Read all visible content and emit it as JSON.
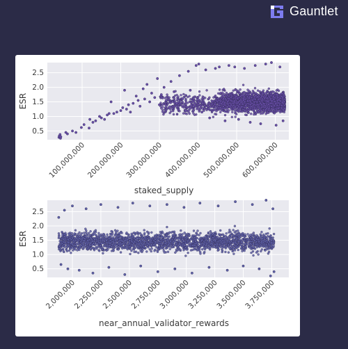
{
  "brand": {
    "name": "Gauntlet",
    "logo_icon": "gauntlet-logo-icon",
    "text_color": "#ffffff"
  },
  "colors": {
    "page_background": "#2b2b47",
    "plot_background": "#e9e9ef",
    "grid": "#ffffff",
    "point_fill_top": "#6a4fa8",
    "point_fill_bottom": "#5f62a8",
    "point_edge": "#2f2a55"
  },
  "chart_data": [
    {
      "type": "scatter",
      "title": "",
      "xlabel": "staked_supply",
      "ylabel": "ESR",
      "xlim": [
        10000000,
        635000000
      ],
      "ylim": [
        0.2,
        2.85
      ],
      "x_ticks": [
        100000000,
        200000000,
        300000000,
        400000000,
        500000000,
        600000000
      ],
      "x_tick_labels": [
        "100,000,000",
        "200,000,000",
        "300,000,000",
        "400,000,000",
        "500,000,000",
        "600,000,000"
      ],
      "y_ticks": [
        0.5,
        1.0,
        1.5,
        2.0,
        2.5
      ],
      "y_tick_labels": [
        "0.5",
        "1.0",
        "1.5",
        "2.0",
        "2.5"
      ],
      "grid": true,
      "legend": "none",
      "points": [
        [
          40000000,
          0.28
        ],
        [
          41000000,
          0.33
        ],
        [
          43000000,
          0.38
        ],
        [
          44000000,
          0.25
        ],
        [
          45000000,
          0.3
        ],
        [
          58000000,
          0.45
        ],
        [
          62000000,
          0.4
        ],
        [
          75000000,
          0.5
        ],
        [
          84000000,
          0.45
        ],
        [
          98000000,
          0.62
        ],
        [
          105000000,
          0.72
        ],
        [
          118000000,
          0.6
        ],
        [
          120000000,
          0.9
        ],
        [
          128000000,
          0.8
        ],
        [
          135000000,
          0.85
        ],
        [
          145000000,
          1.0
        ],
        [
          150000000,
          0.95
        ],
        [
          158000000,
          0.9
        ],
        [
          165000000,
          1.05
        ],
        [
          170000000,
          1.1
        ],
        [
          175000000,
          1.5
        ],
        [
          182000000,
          1.1
        ],
        [
          190000000,
          1.15
        ],
        [
          200000000,
          1.2
        ],
        [
          205000000,
          1.3
        ],
        [
          210000000,
          1.9
        ],
        [
          215000000,
          1.25
        ],
        [
          220000000,
          1.4
        ],
        [
          225000000,
          1.15
        ],
        [
          232000000,
          1.45
        ],
        [
          240000000,
          1.7
        ],
        [
          245000000,
          1.55
        ],
        [
          250000000,
          1.35
        ],
        [
          258000000,
          1.95
        ],
        [
          262000000,
          1.6
        ],
        [
          268000000,
          2.1
        ],
        [
          275000000,
          1.5
        ],
        [
          280000000,
          1.8
        ],
        [
          288000000,
          1.65
        ],
        [
          295000000,
          2.3
        ],
        [
          300000000,
          1.4
        ],
        [
          305000000,
          1.75
        ],
        [
          312000000,
          2.0
        ],
        [
          318000000,
          1.55
        ],
        [
          325000000,
          1.3
        ],
        [
          330000000,
          2.2
        ],
        [
          338000000,
          1.85
        ],
        [
          345000000,
          1.45
        ],
        [
          352000000,
          2.4
        ],
        [
          360000000,
          1.6
        ],
        [
          368000000,
          1.2
        ],
        [
          375000000,
          2.55
        ],
        [
          380000000,
          1.9
        ],
        [
          388000000,
          1.35
        ],
        [
          395000000,
          2.75
        ],
        [
          402000000,
          2.8
        ],
        [
          410000000,
          1.15
        ],
        [
          420000000,
          2.6
        ],
        [
          430000000,
          0.95
        ],
        [
          445000000,
          2.65
        ],
        [
          455000000,
          2.7
        ],
        [
          470000000,
          0.85
        ],
        [
          480000000,
          2.75
        ],
        [
          495000000,
          2.7
        ],
        [
          505000000,
          0.9
        ],
        [
          520000000,
          2.65
        ],
        [
          535000000,
          0.8
        ],
        [
          548000000,
          2.75
        ],
        [
          562000000,
          0.75
        ],
        [
          575000000,
          2.8
        ],
        [
          590000000,
          2.85
        ],
        [
          602000000,
          0.7
        ],
        [
          612000000,
          2.7
        ],
        [
          620000000,
          0.85
        ]
      ]
    },
    {
      "type": "scatter",
      "title": "",
      "xlabel": "near_annual_validator_rewards",
      "ylabel": "ESR",
      "xlim": [
        1780000,
        3900000
      ],
      "ylim": [
        0.2,
        2.9
      ],
      "x_ticks": [
        2000000,
        2250000,
        2500000,
        2750000,
        3000000,
        3250000,
        3500000,
        3750000
      ],
      "x_tick_labels": [
        "2,000,000",
        "2,250,000",
        "2,500,000",
        "2,750,000",
        "3,000,000",
        "3,250,000",
        "3,500,000",
        "3,750,000"
      ],
      "y_ticks": [
        0.5,
        1.0,
        1.5,
        2.0,
        2.5
      ],
      "y_tick_labels": [
        "0.5",
        "1.0",
        "1.5",
        "2.0",
        "2.5"
      ],
      "grid": true,
      "legend": "none",
      "points": [
        [
          1880000,
          2.3
        ],
        [
          1900000,
          0.65
        ],
        [
          1930000,
          2.55
        ],
        [
          1960000,
          0.5
        ],
        [
          2000000,
          2.7
        ],
        [
          2060000,
          0.45
        ],
        [
          2120000,
          2.6
        ],
        [
          2180000,
          0.35
        ],
        [
          2250000,
          2.75
        ],
        [
          2320000,
          0.55
        ],
        [
          2400000,
          2.65
        ],
        [
          2460000,
          0.3
        ],
        [
          2530000,
          2.8
        ],
        [
          2600000,
          0.6
        ],
        [
          2680000,
          2.7
        ],
        [
          2750000,
          0.4
        ],
        [
          2830000,
          2.75
        ],
        [
          2900000,
          0.5
        ],
        [
          2980000,
          2.65
        ],
        [
          3050000,
          0.35
        ],
        [
          3120000,
          2.8
        ],
        [
          3200000,
          0.55
        ],
        [
          3280000,
          2.7
        ],
        [
          3360000,
          0.45
        ],
        [
          3430000,
          2.85
        ],
        [
          3500000,
          0.6
        ],
        [
          3580000,
          2.75
        ],
        [
          3640000,
          0.5
        ],
        [
          3700000,
          2.9
        ],
        [
          3740000,
          0.25
        ],
        [
          3760000,
          2.6
        ],
        [
          3770000,
          0.4
        ]
      ]
    }
  ]
}
